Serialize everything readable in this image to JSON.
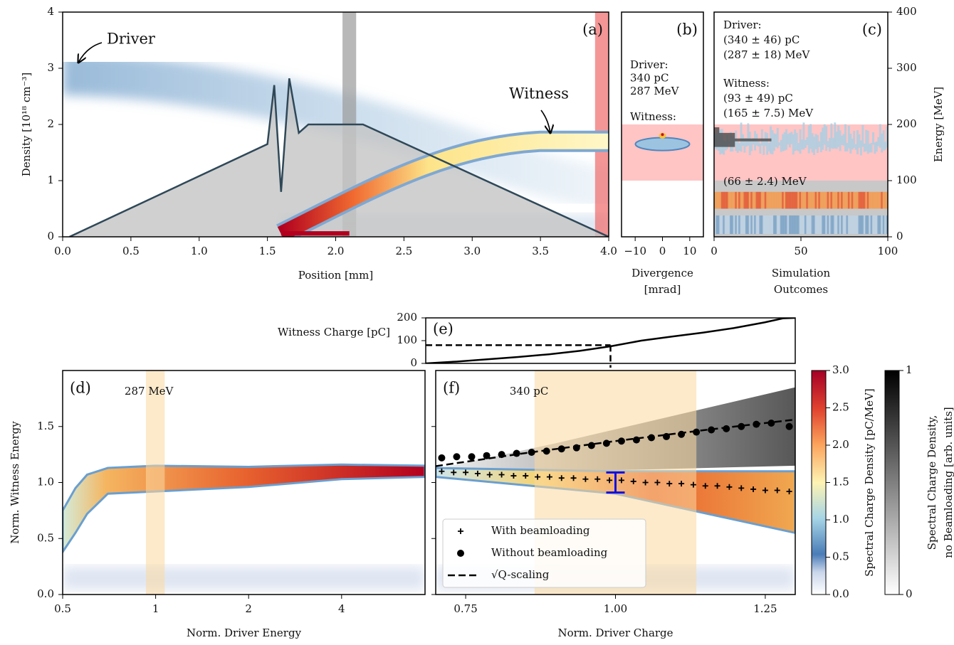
{
  "chart_data": [
    {
      "type": "line",
      "panel_label": "(a)",
      "xlabel": "Position [mm]",
      "ylabel": "Density [10¹⁸ cm⁻³]",
      "xlim": [
        0,
        4
      ],
      "ylim": [
        0,
        4
      ],
      "xticks": [
        {
          "value": 0,
          "label": "0.0"
        },
        {
          "value": 0.5,
          "label": "0.5"
        },
        {
          "value": 1,
          "label": "1.0"
        },
        {
          "value": 1.5,
          "label": "1.5"
        },
        {
          "value": 2,
          "label": "2.0"
        },
        {
          "value": 2.5,
          "label": "2.5"
        },
        {
          "value": 3,
          "label": "3.0"
        },
        {
          "value": 3.5,
          "label": "3.5"
        },
        {
          "value": 4,
          "label": "4.0"
        }
      ],
      "yticks": [
        0,
        1,
        2,
        3,
        4
      ],
      "series": [
        {
          "color": "#2f4858",
          "fill": "#c4c4c4",
          "x": [
            0.05,
            1.5,
            1.55,
            1.6,
            1.66,
            1.73,
            1.8,
            2.2,
            4.0
          ],
          "values": [
            0,
            1.65,
            2.7,
            0.8,
            2.82,
            1.85,
            2.0,
            2.0,
            0
          ]
        }
      ],
      "shaded": [
        {
          "x": [
            2.05,
            2.15
          ],
          "color": "#9a9a9a"
        },
        {
          "x": [
            3.9,
            4.0
          ],
          "color": "#f06a6a"
        }
      ],
      "annotations": [
        "Driver",
        "Witness"
      ]
    },
    {
      "type": "image",
      "panel_label": "(b)",
      "xlabel": [
        "Divergence",
        "[mrad]"
      ],
      "xlim": [
        -15,
        15
      ],
      "ylim": [
        0,
        400
      ],
      "xticks": [
        {
          "value": -10,
          "label": "−10"
        },
        0,
        10
      ],
      "bands": [
        {
          "y": [
            100,
            200
          ],
          "color": "#ffc4c4"
        }
      ],
      "notes": [
        [
          "Driver:",
          "340 pC",
          "287 MeV"
        ],
        [
          "Witness:"
        ]
      ]
    },
    {
      "type": "heatmap",
      "panel_label": "(c)",
      "xlabel": [
        "Simulation",
        "Outcomes"
      ],
      "ylabel": "Energy [MeV]",
      "xlim": [
        0,
        100
      ],
      "ylim": [
        0,
        400
      ],
      "xticks": [
        0,
        50,
        100
      ],
      "yticks": [
        0,
        100,
        200,
        300,
        400
      ],
      "bands": [
        {
          "y": [
            100,
            200
          ],
          "color": "#ffc4c4"
        },
        {
          "y": [
            0,
            100
          ],
          "color": "#c8c8c8"
        }
      ],
      "notes": [
        [
          "Driver:",
          "(340 ± 46) pC",
          "(287 ± 18) MeV"
        ],
        [
          "Witness:",
          "(93 ± 49) pC",
          "(165 ± 7.5) MeV"
        ]
      ],
      "band_note": "(66 ± 2.4) MeV"
    },
    {
      "type": "line",
      "panel_label": "(e)",
      "ylabel": "Witness Charge [pC]",
      "xlim": [
        0.7,
        1.3
      ],
      "ylim": [
        0,
        200
      ],
      "yticks": [
        0,
        100,
        200
      ],
      "series": [
        {
          "color": "#000000",
          "x": [
            0.7,
            0.75,
            0.8,
            0.85,
            0.9,
            0.95,
            1.0,
            1.05,
            1.1,
            1.15,
            1.2,
            1.25,
            1.28,
            1.3
          ],
          "values": [
            0,
            8,
            18,
            28,
            40,
            55,
            75,
            100,
            118,
            135,
            155,
            180,
            198,
            200
          ]
        }
      ],
      "reference": {
        "x": 1.0,
        "y": 80
      }
    },
    {
      "type": "heatmap",
      "panel_label": "(d)",
      "xlabel": "Norm. Driver Energy",
      "ylabel": "Norm. Witness Energy",
      "xscale": "log",
      "xlim": [
        0.5,
        7.45
      ],
      "ylim": [
        0,
        2.0
      ],
      "xticks": [
        0.5,
        1,
        2,
        4
      ],
      "yticks": [
        {
          "value": 0,
          "label": "0.0"
        },
        {
          "value": 0.5,
          "label": "0.5"
        },
        {
          "value": 1,
          "label": "1.0"
        },
        {
          "value": 1.5,
          "label": "1.5"
        }
      ],
      "xband": [
        0.93,
        1.07
      ],
      "band_color": "#fbd9a0",
      "annotation": "287 MeV"
    },
    {
      "type": "scatter",
      "panel_label": "(f)",
      "xlabel": "Norm. Driver Charge",
      "xlim": [
        0.7,
        1.3
      ],
      "ylim": [
        0,
        2.0
      ],
      "xticks": [
        0.75,
        {
          "value": 1.0,
          "label": "1.00"
        },
        1.25
      ],
      "yticks": [
        0,
        0.5,
        1,
        1.5
      ],
      "ytick_labels": false,
      "xband": [
        0.865,
        1.135
      ],
      "band_color": "#fbd9a0",
      "annotation": "340 pC",
      "legend": "lower left",
      "series": [
        {
          "name": "With beamloading",
          "marker": "plus",
          "color": "#000000",
          "x": [
            0.71,
            0.73,
            0.75,
            0.77,
            0.79,
            0.81,
            0.83,
            0.85,
            0.87,
            0.89,
            0.91,
            0.93,
            0.95,
            0.97,
            0.99,
            1.01,
            1.03,
            1.05,
            1.07,
            1.09,
            1.11,
            1.13,
            1.15,
            1.17,
            1.19,
            1.21,
            1.23,
            1.25,
            1.27,
            1.29
          ],
          "values": [
            1.1,
            1.09,
            1.09,
            1.08,
            1.07,
            1.07,
            1.06,
            1.06,
            1.05,
            1.05,
            1.04,
            1.04,
            1.03,
            1.03,
            1.02,
            1.02,
            1.01,
            1.0,
            1.0,
            0.99,
            0.99,
            0.98,
            0.97,
            0.97,
            0.96,
            0.95,
            0.94,
            0.93,
            0.93,
            0.92
          ]
        },
        {
          "name": "Without beamloading",
          "marker": "circle",
          "color": "#000000",
          "x": [
            0.71,
            0.735,
            0.76,
            0.785,
            0.81,
            0.835,
            0.86,
            0.885,
            0.91,
            0.935,
            0.96,
            0.985,
            1.01,
            1.035,
            1.06,
            1.085,
            1.11,
            1.135,
            1.16,
            1.185,
            1.21,
            1.235,
            1.26,
            1.29
          ],
          "values": [
            1.22,
            1.23,
            1.23,
            1.24,
            1.25,
            1.26,
            1.27,
            1.28,
            1.3,
            1.31,
            1.33,
            1.35,
            1.37,
            1.38,
            1.4,
            1.41,
            1.43,
            1.45,
            1.47,
            1.48,
            1.5,
            1.52,
            1.53,
            1.5
          ]
        },
        {
          "name": "√Q-scaling",
          "marker": "dashed",
          "color": "#000000",
          "x": [
            0.7,
            0.85,
            1.0,
            1.15,
            1.3
          ],
          "values": [
            1.146,
            1.263,
            1.37,
            1.469,
            1.562
          ]
        }
      ],
      "errorbar": {
        "x": 1.0,
        "y": 1.0,
        "err": 0.09,
        "color": "#1010e0"
      },
      "colorbars": [
        {
          "label": [
            "Spectral Charge Density [pC/MeV]"
          ],
          "colormap": "RdYlBu_r",
          "lim": [
            0,
            3
          ],
          "ticks": [
            {
              "value": 0,
              "label": "0.0"
            },
            {
              "value": 0.5,
              "label": "0.5"
            },
            {
              "value": 1,
              "label": "1.0"
            },
            {
              "value": 1.5,
              "label": "1.5"
            },
            {
              "value": 2,
              "label": "2.0"
            },
            {
              "value": 2.5,
              "label": "2.5"
            },
            {
              "value": 3,
              "label": "3.0"
            }
          ]
        },
        {
          "label": [
            "Spectral Charge Density,",
            "no Beamloading [arb. units]"
          ],
          "colormap": "Greys",
          "lim": [
            0,
            1
          ],
          "ticks": [
            0,
            1
          ]
        }
      ]
    }
  ]
}
